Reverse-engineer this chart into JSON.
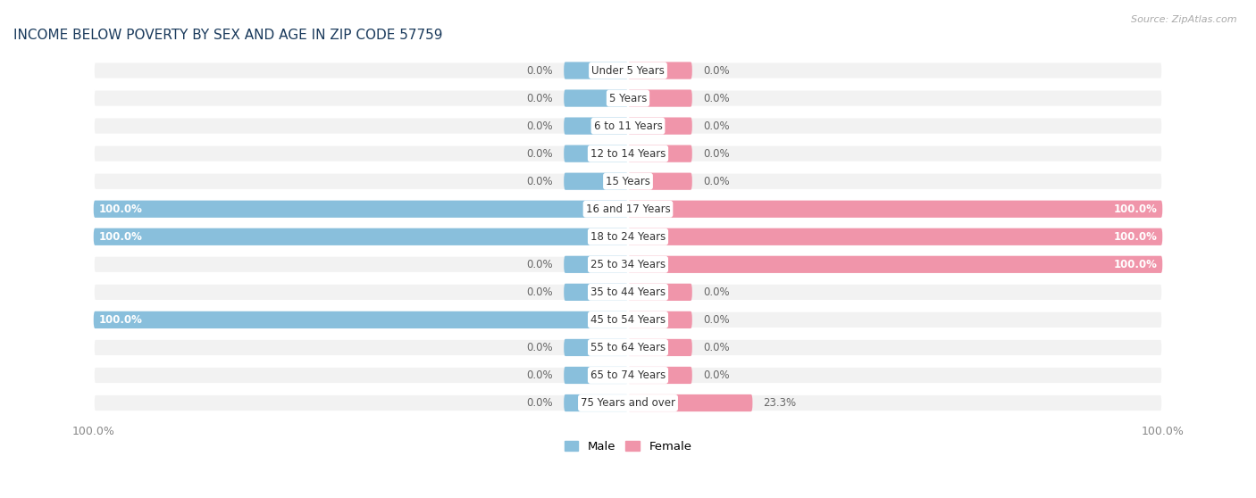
{
  "title": "INCOME BELOW POVERTY BY SEX AND AGE IN ZIP CODE 57759",
  "source": "Source: ZipAtlas.com",
  "categories": [
    "Under 5 Years",
    "5 Years",
    "6 to 11 Years",
    "12 to 14 Years",
    "15 Years",
    "16 and 17 Years",
    "18 to 24 Years",
    "25 to 34 Years",
    "35 to 44 Years",
    "45 to 54 Years",
    "55 to 64 Years",
    "65 to 74 Years",
    "75 Years and over"
  ],
  "male": [
    0.0,
    0.0,
    0.0,
    0.0,
    0.0,
    100.0,
    100.0,
    0.0,
    0.0,
    100.0,
    0.0,
    0.0,
    0.0
  ],
  "female": [
    0.0,
    0.0,
    0.0,
    0.0,
    0.0,
    100.0,
    100.0,
    100.0,
    0.0,
    0.0,
    0.0,
    0.0,
    23.3
  ],
  "male_color": "#89bfdc",
  "female_color": "#f095aa",
  "bg_row_color": "#f2f2f2",
  "title_fontsize": 11,
  "label_fontsize": 8.5,
  "max_val": 100.0,
  "stub_size": 12.0,
  "legend_male": "Male",
  "legend_female": "Female"
}
